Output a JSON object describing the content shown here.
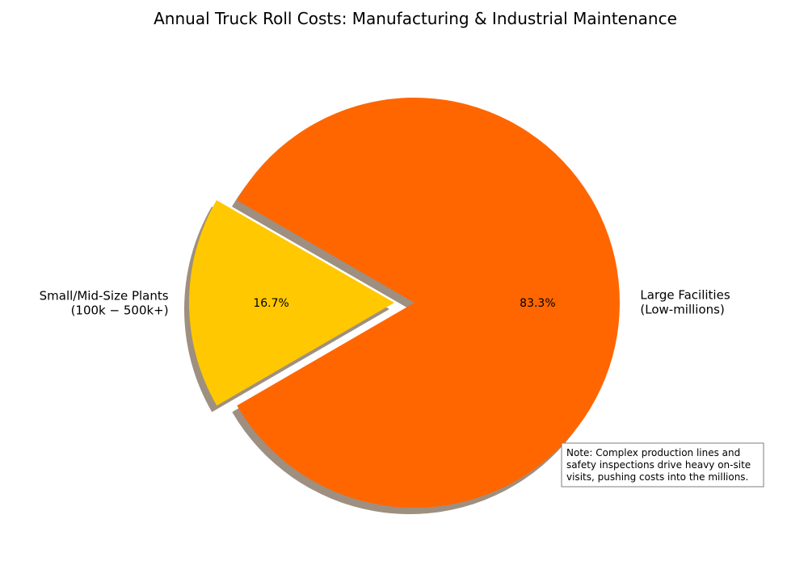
{
  "chart_data": {
    "type": "pie",
    "title": "Annual Truck Roll Costs: Manufacturing & Industrial Maintenance",
    "slices": [
      {
        "label_lines": [
          "Small/Mid-Size Plants",
          "(100k − 500k+)"
        ],
        "value": 16.7,
        "pct_label": "16.7%",
        "color": "#FFC800",
        "exploded": true
      },
      {
        "label_lines": [
          "Large Facilities",
          "(Low-millions)"
        ],
        "value": 83.3,
        "pct_label": "83.3%",
        "color": "#FF6600",
        "exploded": false
      }
    ],
    "start_angle_deg": 150,
    "shadow": true,
    "shadow_color": "#9E8F80",
    "annotation": {
      "lines": [
        "Note: Complex production lines and",
        "safety inspections drive heavy on-site",
        "visits, pushing costs into the millions."
      ]
    }
  }
}
